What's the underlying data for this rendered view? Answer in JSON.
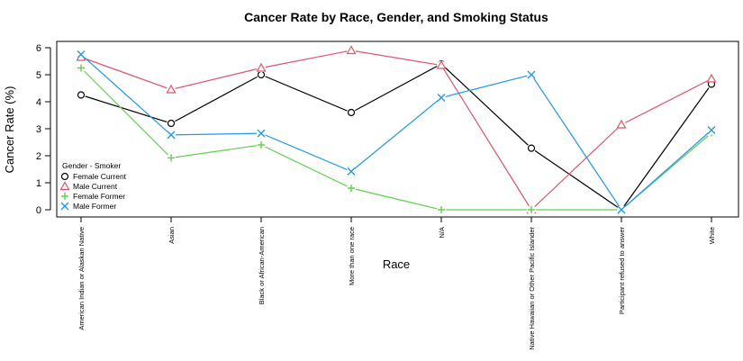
{
  "chart_data": {
    "type": "line",
    "title": "Cancer Rate by Race, Gender, and Smoking Status",
    "xlabel": "Race",
    "ylabel": "Cancer Rate (%)",
    "ylim": [
      0,
      6
    ],
    "yticks": [
      0,
      1,
      2,
      3,
      4,
      5,
      6
    ],
    "grid": false,
    "legend": {
      "title": "Gender - Smoker",
      "placement": "left"
    },
    "categories": [
      "American Indian or Alaskan Native",
      "Asian",
      "Black or African-American",
      "More than one race",
      "N/A",
      "Native Hawaiian or Other Pacific Islander",
      "Participant refused to answer",
      "White"
    ],
    "series": [
      {
        "name": "Female Current",
        "color": "#000000",
        "marker": "circle",
        "values": [
          4.25,
          3.2,
          5.0,
          3.6,
          5.4,
          2.28,
          0.0,
          4.65
        ]
      },
      {
        "name": "Male Current",
        "color": "#df536b",
        "marker": "triangle",
        "values": [
          5.65,
          4.45,
          5.25,
          5.9,
          5.35,
          0.0,
          3.15,
          4.85
        ]
      },
      {
        "name": "Female Former",
        "color": "#61d04f",
        "marker": "plus",
        "values": [
          5.25,
          1.92,
          2.4,
          0.8,
          0.0,
          0.0,
          0.0,
          2.85
        ]
      },
      {
        "name": "Male Former",
        "color": "#2297e6",
        "marker": "cross",
        "values": [
          5.75,
          2.77,
          2.83,
          1.42,
          4.15,
          5.0,
          0.0,
          2.95
        ]
      }
    ]
  }
}
